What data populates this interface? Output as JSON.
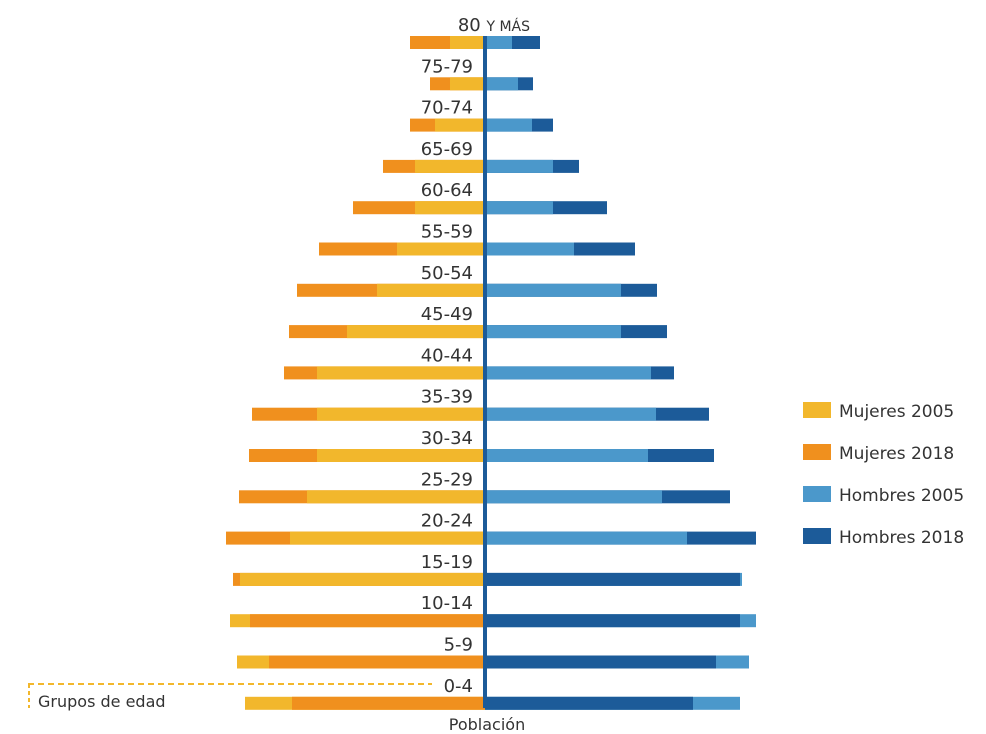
{
  "chart_data": {
    "type": "bar",
    "categories": [
      "80 Y MÁS",
      "75-79",
      "70-74",
      "65-69",
      "60-64",
      "55-59",
      "50-54",
      "45-49",
      "40-44",
      "35-39",
      "30-34",
      "25-29",
      "20-24",
      "15-19",
      "10-14",
      "5-9",
      "0-4"
    ],
    "series": [
      {
        "name": "Mujeres 2005",
        "side": "left",
        "color": "#F2B72C",
        "values": [
          35,
          35,
          50,
          70,
          70,
          88,
          108,
          138,
          168,
          168,
          168,
          178,
          195,
          245,
          255,
          248,
          240
        ]
      },
      {
        "name": "Mujeres 2018",
        "side": "left",
        "color": "#F0901E",
        "values": [
          75,
          55,
          75,
          102,
          132,
          166,
          188,
          196,
          201,
          233,
          236,
          246,
          259,
          252,
          235,
          216,
          193
        ]
      },
      {
        "name": "Hombres 2005",
        "side": "right",
        "color": "#4B98CB",
        "values": [
          27,
          33,
          47,
          68,
          68,
          89,
          136,
          136,
          166,
          171,
          163,
          177,
          202,
          257,
          271,
          264,
          255
        ]
      },
      {
        "name": "Hombres 2018",
        "side": "right",
        "color": "#1C5B99",
        "values": [
          55,
          48,
          68,
          94,
          122,
          150,
          172,
          182,
          189,
          224,
          229,
          245,
          271,
          255,
          255,
          231,
          208
        ]
      }
    ],
    "xlabel": "Población",
    "ylabel": "Grupos de edad",
    "legend_position": "right",
    "grid": false
  }
}
